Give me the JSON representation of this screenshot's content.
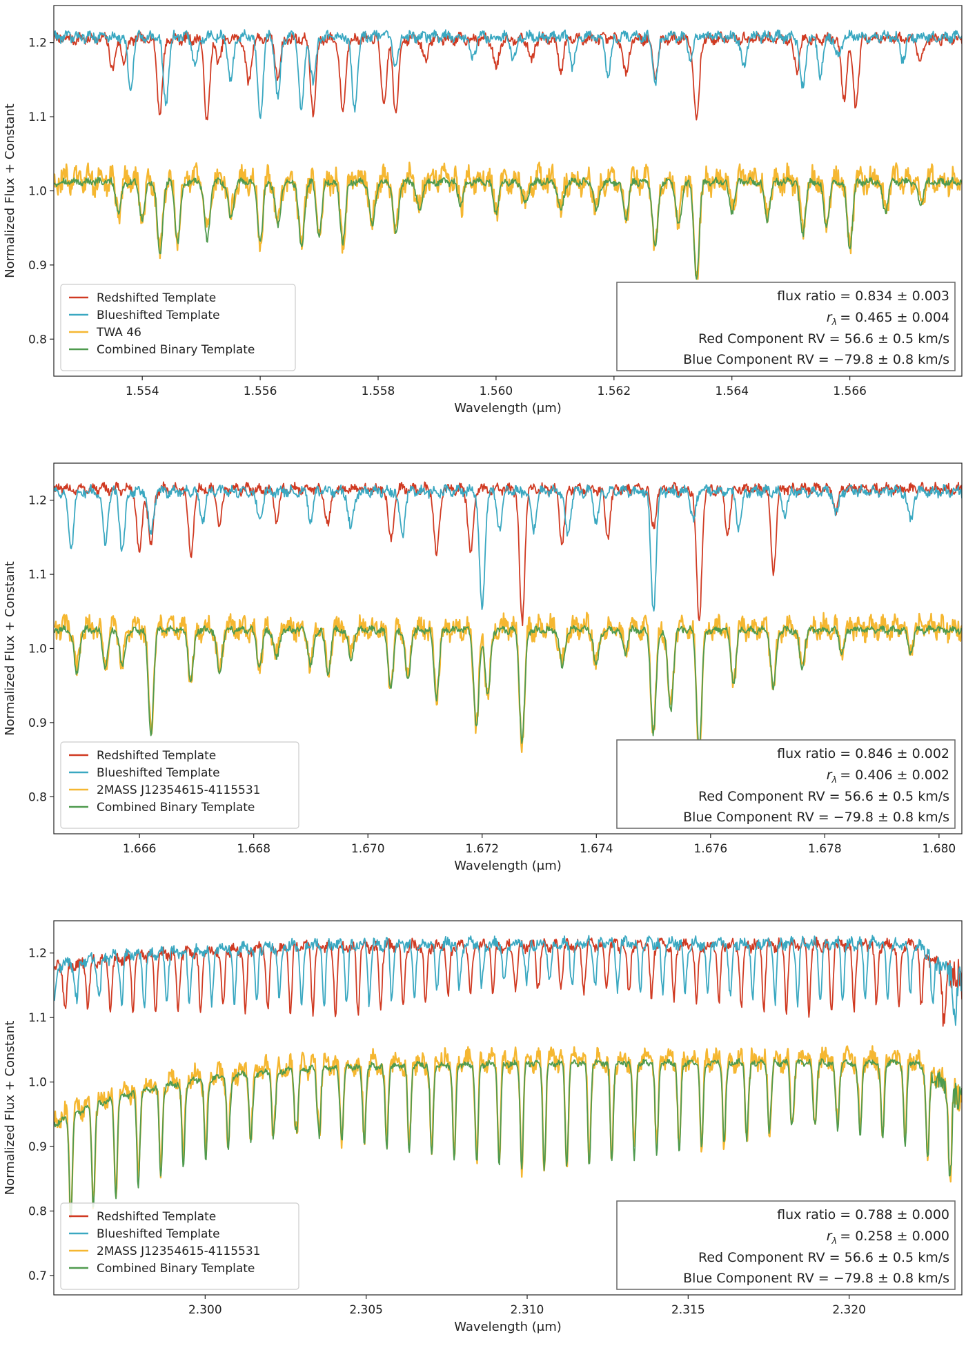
{
  "chart_data": [
    {
      "type": "line",
      "xlabel": "Wavelength (μm)",
      "ylabel": "Normalized Flux + Constant",
      "xlim": [
        1.5525,
        1.5679
      ],
      "ylim": [
        0.75,
        1.25
      ],
      "xticks": [
        "1.554",
        "1.556",
        "1.558",
        "1.560",
        "1.562",
        "1.564",
        "1.566"
      ],
      "xtick_values": [
        1.554,
        1.556,
        1.558,
        1.56,
        1.562,
        1.564,
        1.566
      ],
      "yticks": [
        "0.8",
        "0.9",
        "1.0",
        "1.1",
        "1.2"
      ],
      "ytick_values": [
        0.8,
        0.9,
        1.0,
        1.1,
        1.2
      ],
      "legend_position": "lower-left",
      "legend": [
        "Redshifted Template",
        "Blueshifted Template",
        "TWA 46",
        "Combined Binary Template"
      ],
      "annotation_position": "lower-right",
      "annotation": {
        "flux_ratio": "flux ratio = 0.834 ± 0.003",
        "r_lambda_value": "= 0.465 ± 0.004",
        "red_rv": "Red Component RV = 56.6 ± 0.5 km/s",
        "blue_rv": "Blue Component RV = −79.8 ± 0.8 km/s"
      },
      "series": [
        {
          "name": "Redshifted Template",
          "color": "#d03a22",
          "baseline": 1.205,
          "noise": 0.006,
          "lines": [
            [
              1.5535,
              0.04
            ],
            [
              1.5537,
              0.03
            ],
            [
              1.5543,
              0.1
            ],
            [
              1.5551,
              0.11
            ],
            [
              1.5553,
              0.03
            ],
            [
              1.5558,
              0.06
            ],
            [
              1.5563,
              0.05
            ],
            [
              1.5569,
              0.1
            ],
            [
              1.5574,
              0.1
            ],
            [
              1.5581,
              0.09
            ],
            [
              1.5583,
              0.1
            ],
            [
              1.5588,
              0.03
            ],
            [
              1.56,
              0.04
            ],
            [
              1.5606,
              0.03
            ],
            [
              1.5611,
              0.04
            ],
            [
              1.5622,
              0.05
            ],
            [
              1.5627,
              0.05
            ],
            [
              1.5634,
              0.11
            ],
            [
              1.5651,
              0.04
            ],
            [
              1.5659,
              0.08
            ],
            [
              1.5661,
              0.09
            ],
            [
              1.5672,
              0.03
            ]
          ]
        },
        {
          "name": "Blueshifted Template",
          "color": "#3aa8c1",
          "baseline": 1.208,
          "noise": 0.006,
          "lines": [
            [
              1.5538,
              0.07
            ],
            [
              1.5544,
              0.09
            ],
            [
              1.5549,
              0.04
            ],
            [
              1.5555,
              0.06
            ],
            [
              1.556,
              0.11
            ],
            [
              1.5563,
              0.08
            ],
            [
              1.5567,
              0.1
            ],
            [
              1.5569,
              0.06
            ],
            [
              1.5576,
              0.1
            ],
            [
              1.5583,
              0.04
            ],
            [
              1.5596,
              0.03
            ],
            [
              1.5603,
              0.03
            ],
            [
              1.5613,
              0.04
            ],
            [
              1.5619,
              0.05
            ],
            [
              1.5627,
              0.06
            ],
            [
              1.5633,
              0.03
            ],
            [
              1.5642,
              0.04
            ],
            [
              1.5652,
              0.07
            ],
            [
              1.5655,
              0.05
            ],
            [
              1.5658,
              0.03
            ],
            [
              1.5669,
              0.03
            ]
          ]
        },
        {
          "name": "TWA 46",
          "color": "#f5b731",
          "baseline": 1.015,
          "noise": 0.015,
          "lines": [
            [
              1.5536,
              0.04
            ],
            [
              1.554,
              0.05
            ],
            [
              1.5543,
              0.1
            ],
            [
              1.5546,
              0.08
            ],
            [
              1.5551,
              0.08
            ],
            [
              1.5555,
              0.05
            ],
            [
              1.556,
              0.08
            ],
            [
              1.5563,
              0.06
            ],
            [
              1.5567,
              0.09
            ],
            [
              1.557,
              0.07
            ],
            [
              1.5574,
              0.08
            ],
            [
              1.5579,
              0.06
            ],
            [
              1.5583,
              0.07
            ],
            [
              1.5587,
              0.04
            ],
            [
              1.5594,
              0.03
            ],
            [
              1.56,
              0.04
            ],
            [
              1.5605,
              0.03
            ],
            [
              1.5611,
              0.04
            ],
            [
              1.5617,
              0.04
            ],
            [
              1.5622,
              0.05
            ],
            [
              1.5627,
              0.09
            ],
            [
              1.5631,
              0.06
            ],
            [
              1.5634,
              0.13
            ],
            [
              1.564,
              0.04
            ],
            [
              1.5646,
              0.05
            ],
            [
              1.5652,
              0.07
            ],
            [
              1.5656,
              0.06
            ],
            [
              1.566,
              0.09
            ],
            [
              1.5666,
              0.04
            ],
            [
              1.5672,
              0.03
            ]
          ]
        },
        {
          "name": "Combined Binary Template",
          "color": "#4f9a4e",
          "baseline": 1.012,
          "noise": 0.004,
          "lines": [
            [
              1.5536,
              0.04
            ],
            [
              1.554,
              0.05
            ],
            [
              1.5543,
              0.1
            ],
            [
              1.5546,
              0.08
            ],
            [
              1.5551,
              0.08
            ],
            [
              1.5555,
              0.05
            ],
            [
              1.556,
              0.08
            ],
            [
              1.5563,
              0.06
            ],
            [
              1.5567,
              0.09
            ],
            [
              1.557,
              0.07
            ],
            [
              1.5574,
              0.08
            ],
            [
              1.5579,
              0.06
            ],
            [
              1.5583,
              0.07
            ],
            [
              1.5587,
              0.04
            ],
            [
              1.5594,
              0.03
            ],
            [
              1.56,
              0.04
            ],
            [
              1.5605,
              0.03
            ],
            [
              1.5611,
              0.04
            ],
            [
              1.5617,
              0.04
            ],
            [
              1.5622,
              0.05
            ],
            [
              1.5627,
              0.09
            ],
            [
              1.5631,
              0.06
            ],
            [
              1.5634,
              0.13
            ],
            [
              1.564,
              0.04
            ],
            [
              1.5646,
              0.05
            ],
            [
              1.5652,
              0.07
            ],
            [
              1.5656,
              0.06
            ],
            [
              1.566,
              0.09
            ],
            [
              1.5666,
              0.04
            ],
            [
              1.5672,
              0.03
            ]
          ]
        }
      ]
    },
    {
      "type": "line",
      "xlabel": "Wavelength (μm)",
      "ylabel": "Normalized Flux + Constant",
      "xlim": [
        1.6645,
        1.6804
      ],
      "ylim": [
        0.75,
        1.25
      ],
      "xticks": [
        "1.666",
        "1.668",
        "1.670",
        "1.672",
        "1.674",
        "1.676",
        "1.678",
        "1.680"
      ],
      "xtick_values": [
        1.666,
        1.668,
        1.67,
        1.672,
        1.674,
        1.676,
        1.678,
        1.68
      ],
      "yticks": [
        "0.8",
        "0.9",
        "1.0",
        "1.1",
        "1.2"
      ],
      "ytick_values": [
        0.8,
        0.9,
        1.0,
        1.1,
        1.2
      ],
      "legend_position": "lower-left",
      "legend": [
        "Redshifted Template",
        "Blueshifted Template",
        "2MASS J12354615-4115531",
        "Combined Binary Template"
      ],
      "annotation_position": "lower-right",
      "annotation": {
        "flux_ratio": "flux ratio = 0.846 ± 0.002",
        "r_lambda_value": "= 0.406 ± 0.002",
        "red_rv": "Red Component RV = 56.6 ± 0.5 km/s",
        "blue_rv": "Blue Component RV = −79.8 ± 0.8 km/s"
      },
      "series": [
        {
          "name": "Redshifted Template",
          "color": "#d03a22",
          "baseline": 1.215,
          "noise": 0.006,
          "lines": [
            [
              1.666,
              0.09
            ],
            [
              1.6662,
              0.08
            ],
            [
              1.6669,
              0.09
            ],
            [
              1.6674,
              0.05
            ],
            [
              1.6684,
              0.04
            ],
            [
              1.6693,
              0.05
            ],
            [
              1.6704,
              0.07
            ],
            [
              1.6712,
              0.09
            ],
            [
              1.6718,
              0.09
            ],
            [
              1.6727,
              0.18
            ],
            [
              1.6734,
              0.07
            ],
            [
              1.6742,
              0.06
            ],
            [
              1.675,
              0.05
            ],
            [
              1.6758,
              0.18
            ],
            [
              1.6763,
              0.06
            ],
            [
              1.6771,
              0.11
            ],
            [
              1.6782,
              0.03
            ]
          ]
        },
        {
          "name": "Blueshifted Template",
          "color": "#3aa8c1",
          "baseline": 1.212,
          "noise": 0.006,
          "lines": [
            [
              1.6648,
              0.08
            ],
            [
              1.6654,
              0.07
            ],
            [
              1.6657,
              0.08
            ],
            [
              1.6662,
              0.06
            ],
            [
              1.6671,
              0.04
            ],
            [
              1.6681,
              0.04
            ],
            [
              1.669,
              0.04
            ],
            [
              1.6697,
              0.05
            ],
            [
              1.6706,
              0.06
            ],
            [
              1.672,
              0.16
            ],
            [
              1.6723,
              0.05
            ],
            [
              1.6729,
              0.05
            ],
            [
              1.6735,
              0.06
            ],
            [
              1.674,
              0.04
            ],
            [
              1.675,
              0.16
            ],
            [
              1.6757,
              0.04
            ],
            [
              1.6765,
              0.05
            ],
            [
              1.6773,
              0.03
            ],
            [
              1.6782,
              0.03
            ],
            [
              1.6795,
              0.04
            ]
          ]
        },
        {
          "name": "2MASS J12354615-4115531",
          "color": "#f5b731",
          "baseline": 1.028,
          "noise": 0.013,
          "lines": [
            [
              1.6649,
              0.06
            ],
            [
              1.6654,
              0.05
            ],
            [
              1.6657,
              0.05
            ],
            [
              1.6662,
              0.14
            ],
            [
              1.6669,
              0.07
            ],
            [
              1.6674,
              0.06
            ],
            [
              1.6681,
              0.05
            ],
            [
              1.6684,
              0.04
            ],
            [
              1.669,
              0.05
            ],
            [
              1.6693,
              0.06
            ],
            [
              1.6697,
              0.04
            ],
            [
              1.6704,
              0.08
            ],
            [
              1.6707,
              0.07
            ],
            [
              1.6712,
              0.09
            ],
            [
              1.6719,
              0.13
            ],
            [
              1.6721,
              0.09
            ],
            [
              1.6727,
              0.15
            ],
            [
              1.6734,
              0.05
            ],
            [
              1.674,
              0.05
            ],
            [
              1.6745,
              0.03
            ],
            [
              1.675,
              0.14
            ],
            [
              1.6753,
              0.11
            ],
            [
              1.6758,
              0.16
            ],
            [
              1.6764,
              0.07
            ],
            [
              1.6771,
              0.08
            ],
            [
              1.6776,
              0.05
            ],
            [
              1.6783,
              0.03
            ],
            [
              1.6795,
              0.03
            ]
          ]
        },
        {
          "name": "Combined Binary Template",
          "color": "#4f9a4e",
          "baseline": 1.025,
          "noise": 0.004,
          "lines": [
            [
              1.6649,
              0.06
            ],
            [
              1.6654,
              0.05
            ],
            [
              1.6657,
              0.05
            ],
            [
              1.6662,
              0.14
            ],
            [
              1.6669,
              0.07
            ],
            [
              1.6674,
              0.06
            ],
            [
              1.6681,
              0.05
            ],
            [
              1.6684,
              0.04
            ],
            [
              1.669,
              0.05
            ],
            [
              1.6693,
              0.06
            ],
            [
              1.6697,
              0.04
            ],
            [
              1.6704,
              0.08
            ],
            [
              1.6707,
              0.07
            ],
            [
              1.6712,
              0.09
            ],
            [
              1.6719,
              0.13
            ],
            [
              1.6721,
              0.09
            ],
            [
              1.6727,
              0.15
            ],
            [
              1.6734,
              0.05
            ],
            [
              1.674,
              0.05
            ],
            [
              1.6745,
              0.03
            ],
            [
              1.675,
              0.14
            ],
            [
              1.6753,
              0.11
            ],
            [
              1.6758,
              0.16
            ],
            [
              1.6764,
              0.07
            ],
            [
              1.6771,
              0.08
            ],
            [
              1.6776,
              0.05
            ],
            [
              1.6783,
              0.03
            ],
            [
              1.6795,
              0.03
            ]
          ]
        }
      ]
    },
    {
      "type": "line",
      "xlabel": "Wavelength (μm)",
      "ylabel": "Normalized Flux + Constant",
      "xlim": [
        2.2953,
        2.3235
      ],
      "ylim": [
        0.67,
        1.25
      ],
      "xticks": [
        "2.300",
        "2.305",
        "2.310",
        "2.315",
        "2.320"
      ],
      "xtick_values": [
        2.3,
        2.305,
        2.31,
        2.315,
        2.32
      ],
      "yticks": [
        "0.7",
        "0.8",
        "0.9",
        "1.0",
        "1.1",
        "1.2"
      ],
      "ytick_values": [
        0.7,
        0.8,
        0.9,
        1.0,
        1.1,
        1.2
      ],
      "legend_position": "lower-left",
      "legend": [
        "Redshifted Template",
        "Blueshifted Template",
        "2MASS J12354615-4115531",
        "Combined Binary Template"
      ],
      "annotation_position": "lower-right",
      "annotation": {
        "flux_ratio": "flux ratio = 0.788 ± 0.000",
        "r_lambda_value": "= 0.258 ± 0.000",
        "red_rv": "Red Component RV = 56.6 ± 0.5 km/s",
        "blue_rv": "Blue Component RV = −79.8 ± 0.8 km/s"
      },
      "series": [
        {
          "name": "Redshifted Template",
          "color": "#d03a22",
          "baseline": 1.212,
          "noise": 0.008,
          "comb": [
            0.0007,
            0.1,
            0.0,
            0.3221,
            2.3235
          ]
        },
        {
          "name": "Blueshifted Template",
          "color": "#3aa8c1",
          "baseline": 1.215,
          "noise": 0.008,
          "comb": [
            0.0007,
            0.09,
            0.00035,
            0.3221,
            2.3235
          ]
        },
        {
          "name": "2MASS J12354615-4115531",
          "color": "#f5b731",
          "baseline": 1.035,
          "noise": 0.014,
          "comb": [
            0.0007,
            0.16,
            0.00018,
            0.3221,
            2.3235
          ]
        },
        {
          "name": "Combined Binary Template",
          "color": "#4f9a4e",
          "baseline": 1.03,
          "noise": 0.004,
          "comb": [
            0.0007,
            0.16,
            0.00018,
            0.3221,
            2.3235
          ]
        }
      ]
    }
  ]
}
